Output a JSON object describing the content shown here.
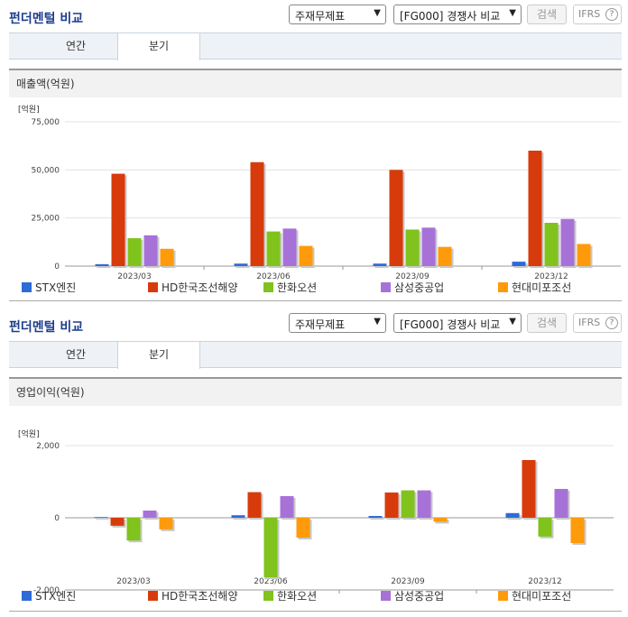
{
  "panels": [
    {
      "title": "펀더멘털 비교",
      "select1": "주재무제표",
      "select2": "[FG000] 경쟁사 비교",
      "search_label": "검색",
      "ifrs_label": "IFRS",
      "help_label": "?",
      "tabs": [
        {
          "label": "연간"
        },
        {
          "label": "분기"
        }
      ],
      "active_tab": 1,
      "chart_title": "매출액(억원)"
    },
    {
      "title": "펀더멘털 비교",
      "select1": "주재무제표",
      "select2": "[FG000] 경쟁사 비교",
      "search_label": "검색",
      "ifrs_label": "IFRS",
      "help_label": "?",
      "tabs": [
        {
          "label": "연간"
        },
        {
          "label": "분기"
        }
      ],
      "active_tab": 1,
      "chart_title": "영업이익(억원)"
    }
  ],
  "colors": {
    "STX엔진": "#2d6bd8",
    "HD한국조선해양": "#d83b0b",
    "한화오션": "#7fc31c",
    "삼성중공업": "#a772d8",
    "현대미포조선": "#ff9a0a"
  },
  "chart_data": [
    {
      "type": "bar",
      "title": "매출액(억원)",
      "unit_label": "[억원]",
      "categories": [
        "2023/03",
        "2023/06",
        "2023/09",
        "2023/12"
      ],
      "ylim": [
        0,
        75000
      ],
      "yticks": [
        0,
        25000,
        50000,
        75000
      ],
      "ytick_labels": [
        "0",
        "25,000",
        "50,000",
        "75,000"
      ],
      "series": [
        {
          "name": "STX엔진",
          "values": [
            1000,
            1300,
            1300,
            2300
          ]
        },
        {
          "name": "HD한국조선해양",
          "values": [
            48000,
            54000,
            50000,
            60000
          ]
        },
        {
          "name": "한화오션",
          "values": [
            14500,
            18000,
            19000,
            22500
          ]
        },
        {
          "name": "삼성중공업",
          "values": [
            16000,
            19500,
            20000,
            24500
          ]
        },
        {
          "name": "현대미포조선",
          "values": [
            9000,
            10500,
            10000,
            11500
          ]
        }
      ]
    },
    {
      "type": "bar",
      "title": "영업이익(억원)",
      "unit_label": "[억원]",
      "categories": [
        "2023/03",
        "2023/06",
        "2023/09",
        "2023/12"
      ],
      "ylim": [
        -2000,
        2000
      ],
      "yticks": [
        -2000,
        0,
        2000
      ],
      "ytick_labels": [
        "-2,000",
        "0",
        "2,000"
      ],
      "series": [
        {
          "name": "STX엔진",
          "values": [
            20,
            70,
            50,
            130
          ]
        },
        {
          "name": "HD한국조선해양",
          "values": [
            -220,
            710,
            700,
            1600
          ]
        },
        {
          "name": "한화오션",
          "values": [
            -630,
            -1650,
            760,
            -520
          ]
        },
        {
          "name": "삼성중공업",
          "values": [
            200,
            600,
            760,
            800
          ]
        },
        {
          "name": "현대미포조선",
          "values": [
            -320,
            -550,
            -110,
            -700
          ]
        }
      ]
    }
  ]
}
